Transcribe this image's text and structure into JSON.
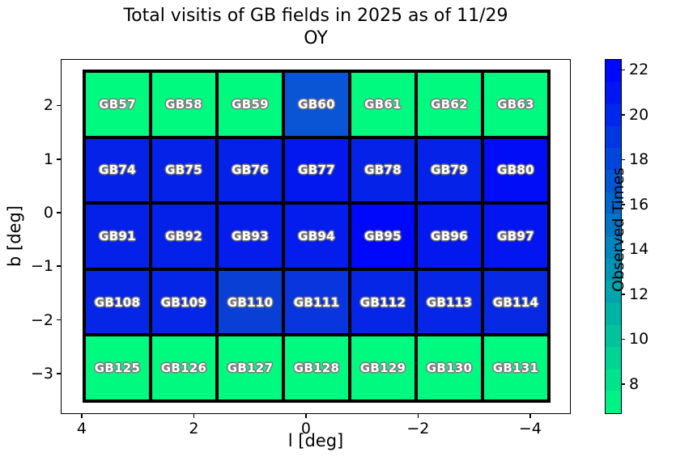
{
  "title": {
    "line1": "Total visitis of GB fields in 2025 as of 11/29",
    "line2": "OY"
  },
  "x_axis": {
    "label": "l [deg]",
    "tick_labels": [
      "4",
      "2",
      "0",
      "−2",
      "−4"
    ],
    "tick_values": [
      4,
      2,
      0,
      -2,
      -4
    ],
    "range": [
      4.36,
      -4.71
    ]
  },
  "y_axis": {
    "label": "b [deg]",
    "tick_labels": [
      "2",
      "1",
      "0",
      "−1",
      "−2",
      "−3"
    ],
    "tick_values": [
      2,
      1,
      0,
      -1,
      -2,
      -3
    ],
    "range": [
      2.85,
      -3.74
    ]
  },
  "colorbar": {
    "label": "Observed Times",
    "tick_labels": [
      "8",
      "10",
      "12",
      "14",
      "16",
      "18",
      "20",
      "22"
    ],
    "tick_values": [
      8,
      10,
      12,
      14,
      16,
      18,
      20,
      22
    ],
    "range": [
      6.7,
      22.45
    ],
    "color_min": "#00FA80",
    "color_max": "#0000FF",
    "steps": 16
  },
  "chart_data": {
    "type": "heatmap",
    "title": "Total visitis of GB fields in 2025 as of 11/29 OY",
    "xlabel": "l [deg]",
    "ylabel": "b [deg]",
    "colorbar_label": "Observed Times",
    "colormap": "green-to-blue (winter reversed)",
    "values_are_estimated_from_color": true,
    "rows": [
      {
        "cells": [
          {
            "label": "GB57",
            "color": "#00F97F",
            "value_est": 7
          },
          {
            "label": "GB58",
            "color": "#00F97F",
            "value_est": 7
          },
          {
            "label": "GB59",
            "color": "#00F97F",
            "value_est": 7
          },
          {
            "label": "GB60",
            "color": "#0A55D5",
            "value_est": 17
          },
          {
            "label": "GB61",
            "color": "#00F97F",
            "value_est": 7
          },
          {
            "label": "GB62",
            "color": "#00F97F",
            "value_est": 7
          },
          {
            "label": "GB63",
            "color": "#00F97F",
            "value_est": 7
          }
        ]
      },
      {
        "cells": [
          {
            "label": "GB74",
            "color": "#0522E8",
            "value_est": 20
          },
          {
            "label": "GB75",
            "color": "#0522E8",
            "value_est": 20
          },
          {
            "label": "GB76",
            "color": "#0421E9",
            "value_est": 20
          },
          {
            "label": "GB77",
            "color": "#0318EE",
            "value_est": 21
          },
          {
            "label": "GB78",
            "color": "#0522E8",
            "value_est": 20
          },
          {
            "label": "GB79",
            "color": "#0522E8",
            "value_est": 20
          },
          {
            "label": "GB80",
            "color": "#010DF6",
            "value_est": 22
          }
        ]
      },
      {
        "cells": [
          {
            "label": "GB91",
            "color": "#0421EA",
            "value_est": 20
          },
          {
            "label": "GB92",
            "color": "#0421EA",
            "value_est": 20
          },
          {
            "label": "GB93",
            "color": "#041DEC",
            "value_est": 21
          },
          {
            "label": "GB94",
            "color": "#041DEC",
            "value_est": 21
          },
          {
            "label": "GB95",
            "color": "#0008FB",
            "value_est": 22
          },
          {
            "label": "GB96",
            "color": "#0318EE",
            "value_est": 21
          },
          {
            "label": "GB97",
            "color": "#0315F0",
            "value_est": 21
          }
        ]
      },
      {
        "cells": [
          {
            "label": "GB108",
            "color": "#0526E6",
            "value_est": 20
          },
          {
            "label": "GB109",
            "color": "#0526E6",
            "value_est": 20
          },
          {
            "label": "GB110",
            "color": "#0A3FD6",
            "value_est": 18
          },
          {
            "label": "GB111",
            "color": "#0835DD",
            "value_est": 19
          },
          {
            "label": "GB112",
            "color": "#0526E6",
            "value_est": 20
          },
          {
            "label": "GB113",
            "color": "#0526E6",
            "value_est": 20
          },
          {
            "label": "GB114",
            "color": "#0729E3",
            "value_est": 20
          }
        ]
      },
      {
        "cells": [
          {
            "label": "GB125",
            "color": "#00F97F",
            "value_est": 7
          },
          {
            "label": "GB126",
            "color": "#00F97F",
            "value_est": 7
          },
          {
            "label": "GB127",
            "color": "#00F97F",
            "value_est": 7
          },
          {
            "label": "GB128",
            "color": "#00F97F",
            "value_est": 7
          },
          {
            "label": "GB129",
            "color": "#00F97F",
            "value_est": 7
          },
          {
            "label": "GB130",
            "color": "#00F97F",
            "value_est": 7
          },
          {
            "label": "GB131",
            "color": "#00F97F",
            "value_est": 7
          }
        ]
      }
    ]
  }
}
